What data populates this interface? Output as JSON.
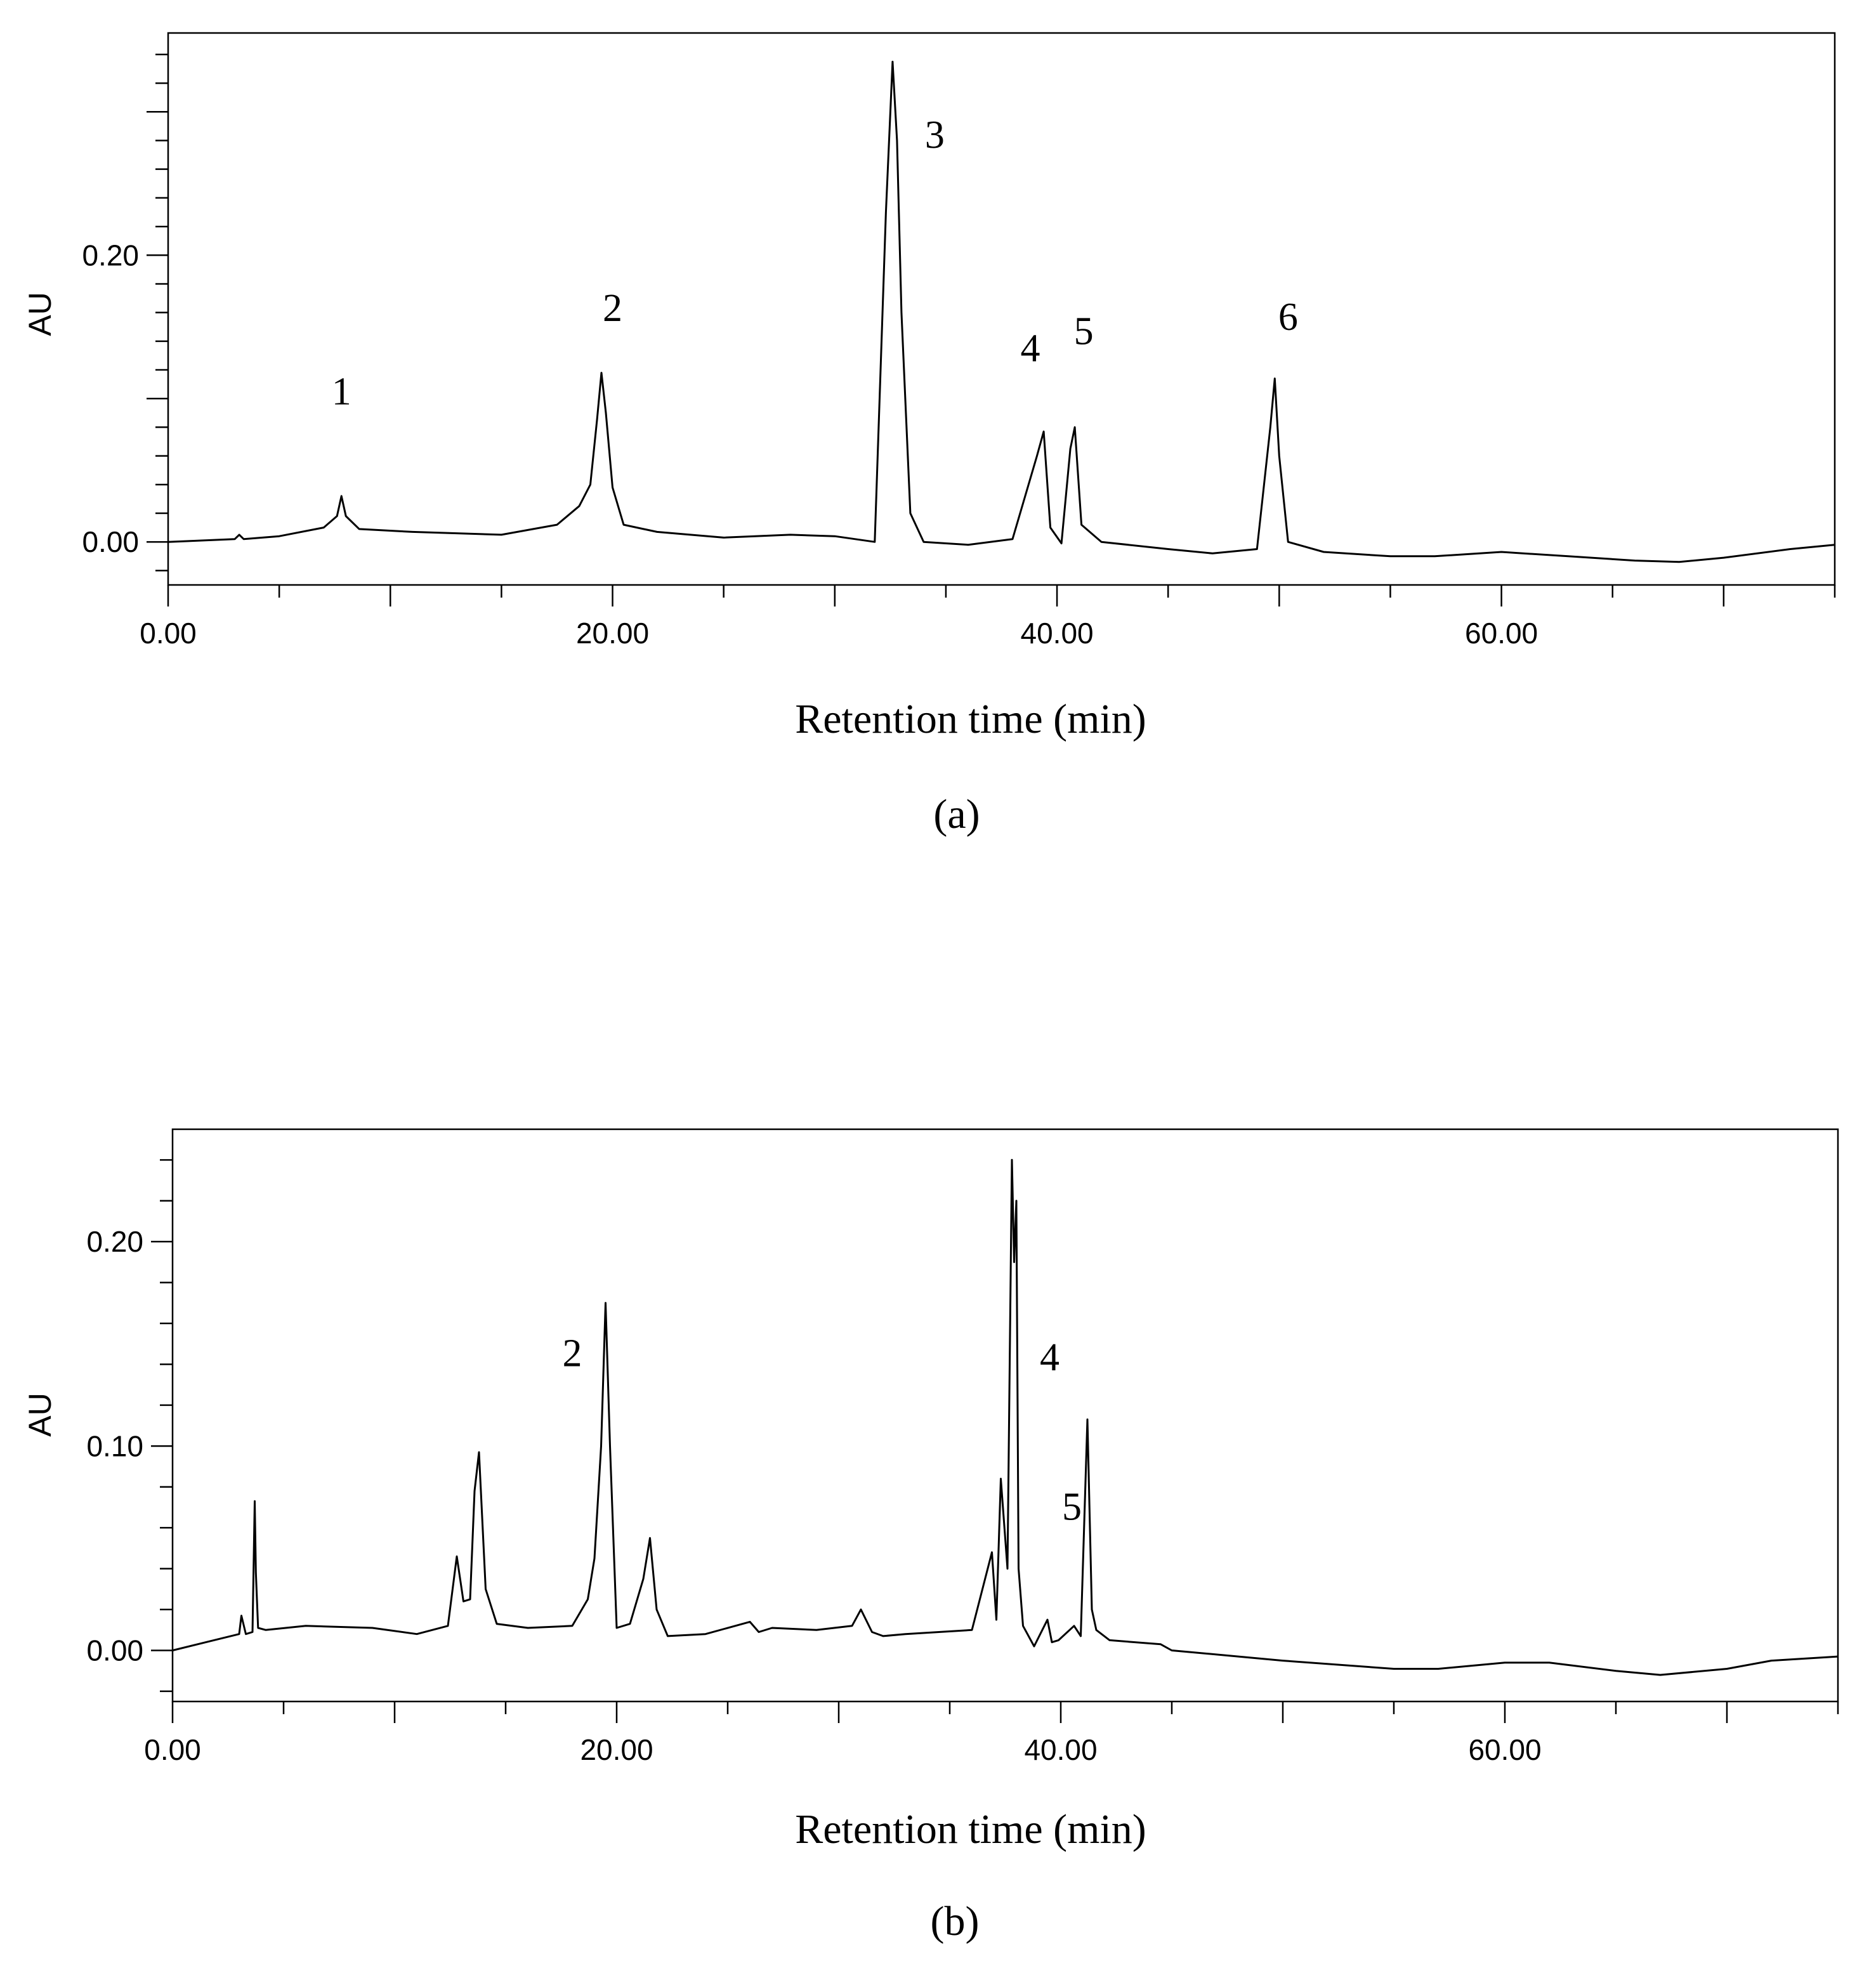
{
  "chart_data": [
    {
      "type": "line",
      "panel": "(a)",
      "xlabel": "Retention time (min)",
      "ylabel": "AU",
      "xlim": [
        0,
        75
      ],
      "ylim": [
        -0.03,
        0.355
      ],
      "xticks": [
        "0.00",
        "20.00",
        "40.00",
        "60.00"
      ],
      "yticks": [
        "0.00",
        "0.20"
      ],
      "peak_labels": [
        {
          "label": "1",
          "x": 7.8,
          "y": 0.096
        },
        {
          "label": "2",
          "x": 20.0,
          "y": 0.154
        },
        {
          "label": "3",
          "x": 34.5,
          "y": 0.275
        },
        {
          "label": "4",
          "x": 38.8,
          "y": 0.126
        },
        {
          "label": "5",
          "x": 41.2,
          "y": 0.138
        },
        {
          "label": "6",
          "x": 50.4,
          "y": 0.148
        }
      ],
      "x": [
        0,
        3,
        3.2,
        3.4,
        5,
        7,
        7.6,
        7.8,
        8.0,
        8.6,
        11,
        15,
        17.5,
        18.5,
        19.0,
        19.3,
        19.5,
        19.7,
        20.0,
        20.5,
        22,
        25,
        28,
        30,
        31.8,
        32.3,
        32.6,
        32.8,
        33.0,
        33.4,
        34,
        36,
        38,
        39.1,
        39.4,
        39.7,
        40.2,
        40.6,
        40.8,
        41.1,
        42,
        45,
        47,
        49,
        49.6,
        49.8,
        50.0,
        50.4,
        52,
        55,
        57,
        60,
        63,
        66,
        68,
        70,
        73,
        75
      ],
      "y": [
        0.0,
        0.002,
        0.005,
        0.002,
        0.004,
        0.01,
        0.018,
        0.032,
        0.018,
        0.009,
        0.007,
        0.005,
        0.012,
        0.025,
        0.04,
        0.085,
        0.118,
        0.09,
        0.038,
        0.012,
        0.007,
        0.003,
        0.005,
        0.004,
        0.0,
        0.23,
        0.335,
        0.28,
        0.16,
        0.02,
        0.0,
        -0.002,
        0.002,
        0.06,
        0.077,
        0.01,
        -0.001,
        0.065,
        0.08,
        0.012,
        0.0,
        -0.005,
        -0.008,
        -0.005,
        0.08,
        0.114,
        0.06,
        0.0,
        -0.007,
        -0.01,
        -0.01,
        -0.007,
        -0.01,
        -0.013,
        -0.014,
        -0.011,
        -0.005,
        -0.002
      ]
    },
    {
      "type": "line",
      "panel": "(b)",
      "xlabel": "Retention time (min)",
      "ylabel": "AU",
      "xlim": [
        0,
        75
      ],
      "ylim": [
        -0.025,
        0.255
      ],
      "xticks": [
        "0.00",
        "20.00",
        "40.00",
        "60.00"
      ],
      "yticks": [
        "0.00",
        "0.10",
        "0.20"
      ],
      "peak_labels": [
        {
          "label": "2",
          "x": 18.0,
          "y": 0.139
        },
        {
          "label": "4",
          "x": 39.5,
          "y": 0.137
        },
        {
          "label": "5",
          "x": 40.5,
          "y": 0.064
        }
      ],
      "x": [
        0,
        1.5,
        3.0,
        3.1,
        3.3,
        3.6,
        3.7,
        3.75,
        3.85,
        4.2,
        6,
        9,
        11,
        12.4,
        12.8,
        13.1,
        13.4,
        13.6,
        13.8,
        14.1,
        14.6,
        16,
        18,
        18.7,
        19.0,
        19.3,
        19.5,
        19.7,
        20.0,
        20.6,
        21.2,
        21.5,
        21.8,
        22.3,
        24,
        26,
        26.4,
        27,
        29,
        30.6,
        31.0,
        31.5,
        32,
        33,
        36,
        36.9,
        37.1,
        37.3,
        37.6,
        37.8,
        37.9,
        38.0,
        38.1,
        38.3,
        38.8,
        39.4,
        39.6,
        39.9,
        40.6,
        40.9,
        41.2,
        41.4,
        41.6,
        42.2,
        44.5,
        45,
        48,
        50,
        55,
        57,
        60,
        62,
        65,
        67,
        70,
        72,
        75
      ],
      "y": [
        0.0,
        0.004,
        0.008,
        0.017,
        0.008,
        0.009,
        0.073,
        0.038,
        0.011,
        0.01,
        0.012,
        0.011,
        0.008,
        0.012,
        0.046,
        0.024,
        0.025,
        0.078,
        0.097,
        0.03,
        0.013,
        0.011,
        0.012,
        0.025,
        0.045,
        0.1,
        0.17,
        0.1,
        0.011,
        0.013,
        0.035,
        0.055,
        0.02,
        0.007,
        0.008,
        0.014,
        0.009,
        0.011,
        0.01,
        0.012,
        0.02,
        0.009,
        0.007,
        0.008,
        0.01,
        0.048,
        0.015,
        0.084,
        0.04,
        0.24,
        0.19,
        0.22,
        0.04,
        0.012,
        0.002,
        0.015,
        0.004,
        0.005,
        0.012,
        0.007,
        0.113,
        0.02,
        0.01,
        0.005,
        0.003,
        0.0,
        -0.003,
        -0.005,
        -0.009,
        -0.009,
        -0.006,
        -0.006,
        -0.01,
        -0.012,
        -0.009,
        -0.005,
        -0.003
      ]
    }
  ]
}
